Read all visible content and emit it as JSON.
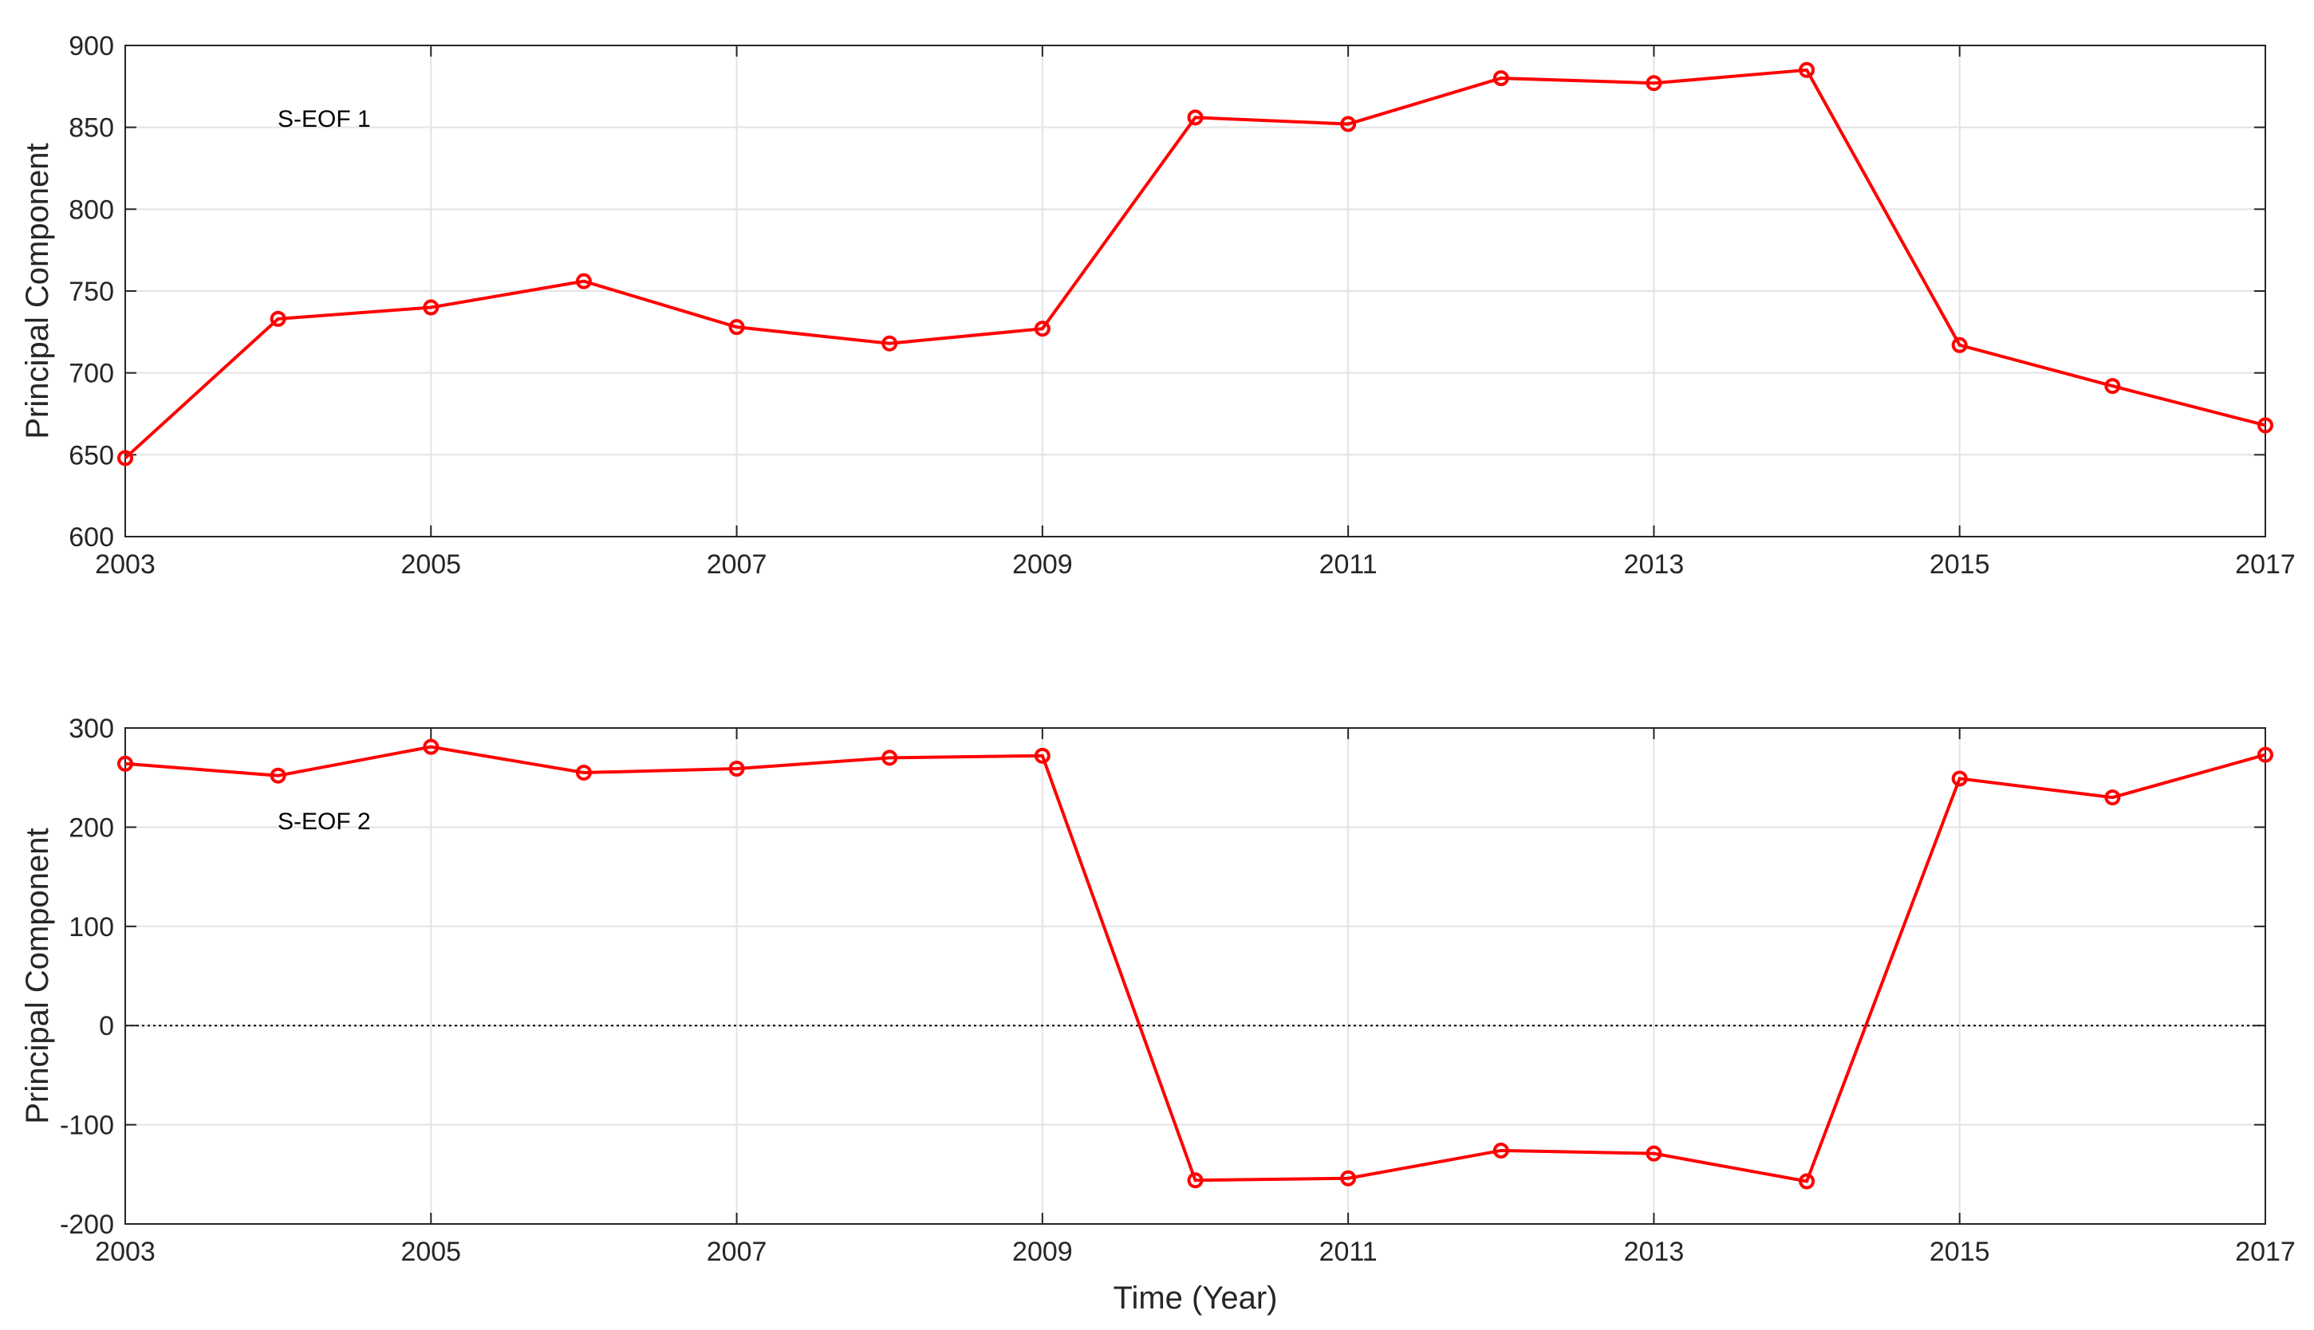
{
  "chart_data": [
    {
      "type": "line",
      "annotation": "S-EOF 1",
      "ylabel": "Principal Component",
      "xlabel": "",
      "xlim": [
        2003,
        2017
      ],
      "ylim": [
        600,
        900
      ],
      "xticks": [
        2003,
        2005,
        2007,
        2009,
        2011,
        2013,
        2015,
        2017
      ],
      "yticks": [
        600,
        650,
        700,
        750,
        800,
        850,
        900
      ],
      "grid": true,
      "series": [
        {
          "color": "#ff0000",
          "marker": "circle",
          "x": [
            2003,
            2004,
            2005,
            2006,
            2007,
            2008,
            2009,
            2010,
            2011,
            2012,
            2013,
            2014,
            2015,
            2016,
            2017
          ],
          "y": [
            648,
            733,
            740,
            756,
            728,
            718,
            727,
            856,
            852,
            880,
            877,
            885,
            717,
            692,
            668
          ]
        }
      ]
    },
    {
      "type": "line",
      "annotation": "S-EOF 2",
      "ylabel": "Principal Component",
      "xlabel": "Time (Year)",
      "xlim": [
        2003,
        2017
      ],
      "ylim": [
        -200,
        300
      ],
      "xticks": [
        2003,
        2005,
        2007,
        2009,
        2011,
        2013,
        2015,
        2017
      ],
      "yticks": [
        -200,
        -100,
        0,
        100,
        200,
        300
      ],
      "grid": true,
      "zero_line": true,
      "series": [
        {
          "color": "#ff0000",
          "marker": "circle",
          "x": [
            2003,
            2004,
            2005,
            2006,
            2007,
            2008,
            2009,
            2010,
            2011,
            2012,
            2013,
            2014,
            2015,
            2016,
            2017
          ],
          "y": [
            264,
            252,
            281,
            255,
            259,
            270,
            272,
            -156,
            -154,
            -126,
            -129,
            -157,
            249,
            230,
            273
          ]
        }
      ]
    }
  ]
}
